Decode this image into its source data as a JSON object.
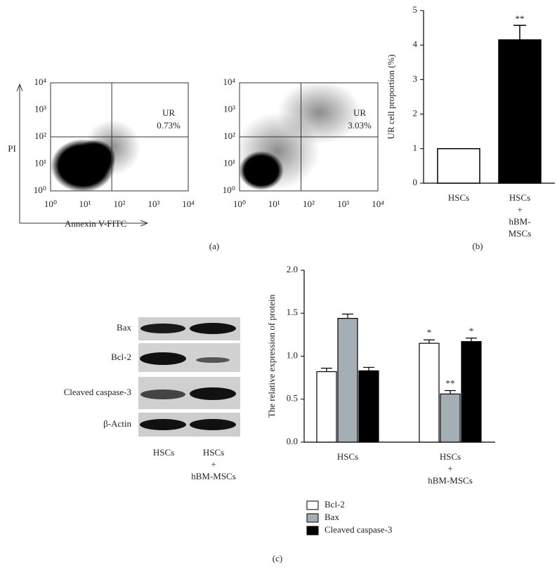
{
  "panel_labels": {
    "a": "(a)",
    "b": "(b)",
    "c": "(c)"
  },
  "chart_data": [
    {
      "type": "flow",
      "ylabel": "PI",
      "xlabel": "Annexin V-FITC",
      "xscale": "log",
      "yscale": "log",
      "xlim": [
        1,
        10000
      ],
      "ylim": [
        1,
        10000
      ],
      "xticks": [
        {
          "value": 1,
          "label": "10⁰"
        },
        {
          "value": 10,
          "label": "10¹"
        },
        {
          "value": 100,
          "label": "10²"
        },
        {
          "value": 1000,
          "label": "10³"
        },
        {
          "value": 10000,
          "label": "10⁴"
        }
      ],
      "yticks": [
        {
          "value": 1,
          "label": "10⁰"
        },
        {
          "value": 10,
          "label": "10¹"
        },
        {
          "value": 100,
          "label": "10²"
        },
        {
          "value": 1000,
          "label": "10³"
        },
        {
          "value": 10000,
          "label": "10⁴"
        }
      ],
      "gate": [
        60,
        100
      ],
      "quadrant_label": "UR",
      "quadrant_value": "0.73%"
    },
    {
      "type": "flow",
      "xscale": "log",
      "yscale": "log",
      "xlim": [
        1,
        10000
      ],
      "ylim": [
        1,
        10000
      ],
      "xticks": [
        {
          "value": 1,
          "label": "10⁰"
        },
        {
          "value": 10,
          "label": "10¹"
        },
        {
          "value": 100,
          "label": "10²"
        },
        {
          "value": 1000,
          "label": "10³"
        },
        {
          "value": 10000,
          "label": "10⁴"
        }
      ],
      "yticks": [
        {
          "value": 1,
          "label": "10⁰"
        },
        {
          "value": 10,
          "label": "10¹"
        },
        {
          "value": 100,
          "label": "10²"
        },
        {
          "value": 1000,
          "label": "10³"
        },
        {
          "value": 10000,
          "label": "10⁴"
        }
      ],
      "gate": [
        60,
        100
      ],
      "quadrant_label": "UR",
      "quadrant_value": "3.03%"
    },
    {
      "type": "bar",
      "ylabel": "UR cell proportion (%)",
      "categories": [
        "HSCs",
        "HSCs\n+\nhBM-MSCs"
      ],
      "values": [
        1,
        4.15
      ],
      "errors": [
        null,
        0.42
      ],
      "colors": [
        "#ffffff",
        "#000000"
      ],
      "annotations": [
        null,
        "**"
      ],
      "ylim": [
        0,
        5
      ],
      "yticks": [
        0,
        1,
        2,
        3,
        4,
        5
      ]
    },
    {
      "type": "grouped_bar",
      "ylabel": "The relative expression of protein",
      "categories": [
        "HSCs",
        "HSCs\n+\nhBM-MSCs"
      ],
      "series": [
        {
          "name": "Bcl-2",
          "color": "#ffffff",
          "values": [
            0.82,
            1.15
          ],
          "errors": [
            0.04,
            0.04
          ],
          "annotations": [
            null,
            "*"
          ]
        },
        {
          "name": "Bax",
          "color": "#a3aeb5",
          "values": [
            1.44,
            0.56
          ],
          "errors": [
            0.05,
            0.04
          ],
          "annotations": [
            null,
            "**"
          ]
        },
        {
          "name": "Cleaved caspase-3",
          "color": "#000000",
          "values": [
            0.83,
            1.17
          ],
          "errors": [
            0.04,
            0.04
          ],
          "annotations": [
            null,
            "*"
          ]
        }
      ],
      "ylim": [
        0,
        2
      ],
      "yticks": [
        {
          "value": 0,
          "label": "0.0"
        },
        0.5,
        {
          "value": 1,
          "label": "1.0"
        },
        1.5,
        {
          "value": 2,
          "label": "2.0"
        }
      ]
    }
  ],
  "western_blot": {
    "rows": [
      "Bax",
      "Bcl-2",
      "Cleaved caspase-3",
      "β-Actin"
    ],
    "lanes": [
      "HSCs",
      "HSCs\n+\nhBM-MSCs"
    ]
  }
}
